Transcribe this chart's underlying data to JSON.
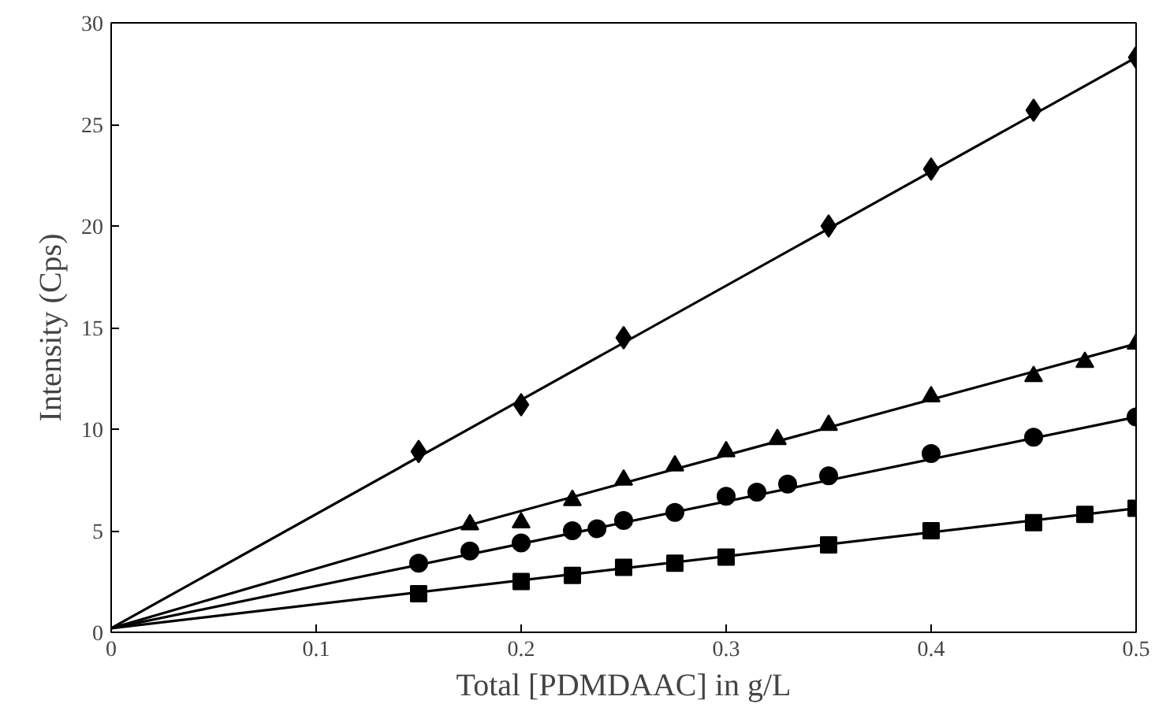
{
  "chart_data": {
    "type": "scatter",
    "xlabel": "Total [PDMDAAC] in g/L",
    "ylabel": "Intensity (Cps)",
    "xlim": [
      0,
      0.5
    ],
    "ylim": [
      0,
      30
    ],
    "xticks": [
      0,
      0.1,
      0.2,
      0.3,
      0.4,
      0.5
    ],
    "yticks": [
      0,
      5,
      10,
      15,
      20,
      25,
      30
    ],
    "grid": false,
    "series": [
      {
        "marker": "diamond",
        "color": "#000000",
        "x": [
          0.15,
          0.2,
          0.25,
          0.35,
          0.4,
          0.45,
          0.5
        ],
        "values": [
          8.9,
          11.2,
          14.5,
          20.0,
          22.8,
          25.7,
          28.3
        ]
      },
      {
        "marker": "triangle",
        "color": "#000000",
        "x": [
          0.175,
          0.2,
          0.225,
          0.25,
          0.275,
          0.3,
          0.325,
          0.35,
          0.4,
          0.45,
          0.475,
          0.5
        ],
        "values": [
          5.3,
          5.4,
          6.5,
          7.5,
          8.2,
          8.9,
          9.5,
          10.2,
          11.6,
          12.6,
          13.3,
          14.2
        ]
      },
      {
        "marker": "circle",
        "color": "#000000",
        "x": [
          0.15,
          0.175,
          0.2,
          0.225,
          0.237,
          0.25,
          0.275,
          0.3,
          0.315,
          0.33,
          0.35,
          0.4,
          0.45,
          0.5
        ],
        "values": [
          3.4,
          4.0,
          4.4,
          5.0,
          5.1,
          5.5,
          5.9,
          6.7,
          6.9,
          7.3,
          7.7,
          8.8,
          9.6,
          10.6
        ]
      },
      {
        "marker": "square",
        "color": "#000000",
        "x": [
          0.15,
          0.2,
          0.225,
          0.25,
          0.275,
          0.3,
          0.35,
          0.4,
          0.45,
          0.475,
          0.5
        ],
        "values": [
          1.9,
          2.5,
          2.8,
          3.2,
          3.4,
          3.7,
          4.3,
          5.0,
          5.4,
          5.8,
          6.1
        ]
      },
      {
        "type": "line",
        "color": "#000000",
        "x": [
          0,
          0.5
        ],
        "values": [
          0.2,
          28.3
        ]
      },
      {
        "type": "line",
        "color": "#000000",
        "x": [
          0,
          0.15,
          0.5
        ],
        "values": [
          0.2,
          4.6,
          14.2
        ]
      },
      {
        "type": "line",
        "color": "#000000",
        "x": [
          0,
          0.5
        ],
        "values": [
          0.2,
          10.6
        ]
      },
      {
        "type": "line",
        "color": "#000000",
        "x": [
          0,
          0.5
        ],
        "values": [
          0.2,
          6.1
        ]
      }
    ]
  }
}
